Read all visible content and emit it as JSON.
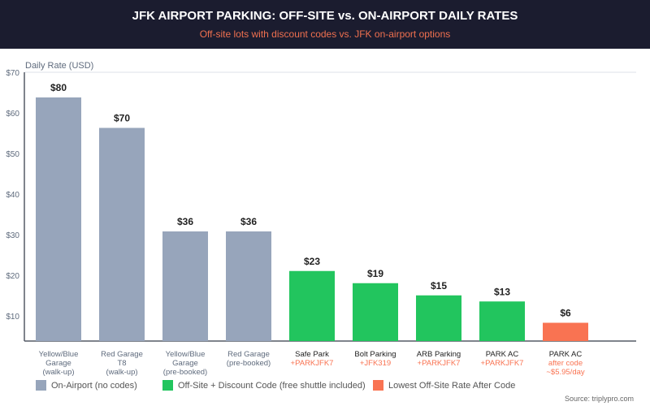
{
  "header": {
    "title": "JFK AIRPORT PARKING: OFF-SITE vs. ON-AIRPORT DAILY RATES",
    "subtitle": "Off-site lots with discount codes vs. JFK on-airport options"
  },
  "chart_data": {
    "type": "bar",
    "title": "JFK AIRPORT PARKING: OFF-SITE vs. ON-AIRPORT DAILY RATES",
    "subtitle": "Off-site lots with discount codes vs. JFK on-airport options",
    "ylabel": "Daily Rate (USD)",
    "yticks": [
      "$10",
      "$20",
      "$30",
      "$40",
      "$50",
      "$60",
      "$70"
    ],
    "ytick_values": [
      10,
      20,
      30,
      40,
      50,
      60,
      70
    ],
    "grid": false,
    "legend_placement": "bottom",
    "categories": [
      {
        "lines": [
          "Yellow/Blue",
          "Garage",
          "(walk-up)"
        ],
        "sub": []
      },
      {
        "lines": [
          "Red Garage",
          "T8",
          "(walk-up)"
        ],
        "sub": []
      },
      {
        "lines": [
          "Yellow/Blue",
          "Garage",
          "(pre-booked)"
        ],
        "sub": []
      },
      {
        "lines": [
          "Red Garage",
          "(pre-booked)"
        ],
        "sub": []
      },
      {
        "lines": [
          "Safe Park"
        ],
        "sub": [
          "+PARKJFK7"
        ]
      },
      {
        "lines": [
          "Bolt Parking"
        ],
        "sub": [
          "+JFK319"
        ]
      },
      {
        "lines": [
          "ARB Parking"
        ],
        "sub": [
          "+PARKJFK7"
        ]
      },
      {
        "lines": [
          "PARK AC"
        ],
        "sub": [
          "+PARKJFK7"
        ]
      },
      {
        "lines": [
          "PARK AC"
        ],
        "sub": [
          "after code",
          "~$5.95/day"
        ]
      }
    ],
    "values": [
      80,
      70,
      36,
      36,
      23,
      19,
      15,
      13,
      6
    ],
    "data_labels": [
      "$80",
      "$70",
      "$36",
      "$36",
      "$23",
      "$19",
      "$15",
      "$13",
      "$6"
    ],
    "groups": [
      "on",
      "on",
      "on",
      "on",
      "off",
      "off",
      "off",
      "off",
      "low"
    ],
    "colors": {
      "on": "#97a5bb",
      "off": "#22c55e",
      "low": "#f97352",
      "muted": "#5f6b7d",
      "code": "#f97352"
    },
    "legend": [
      {
        "key": "on",
        "label": "On-Airport (no codes)"
      },
      {
        "key": "off",
        "label": "Off-Site + Discount Code (free shuttle included)"
      },
      {
        "key": "low",
        "label": "Lowest Off-Site Rate After Code"
      }
    ],
    "source": "Source: triplypro.com"
  }
}
